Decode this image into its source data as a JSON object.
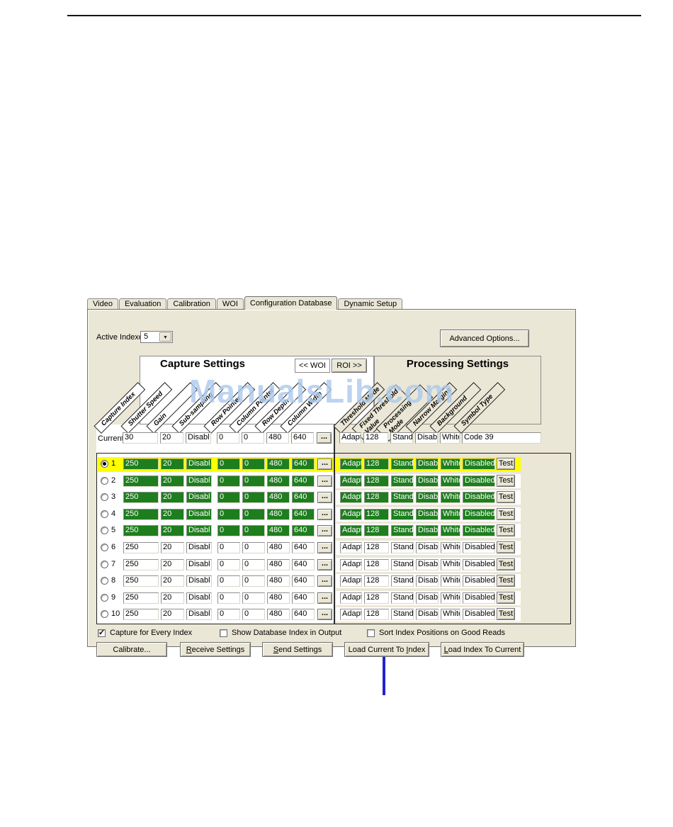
{
  "tabs": [
    {
      "label": "Video",
      "active": false
    },
    {
      "label": "Evaluation",
      "active": false
    },
    {
      "label": "Calibration",
      "active": false
    },
    {
      "label": "WOI",
      "active": false
    },
    {
      "label": "Configuration Database",
      "active": true
    },
    {
      "label": "Dynamic Setup",
      "active": false
    }
  ],
  "active_indexes": {
    "label": "Active Indexes",
    "value": "5"
  },
  "advanced_options_label": "Advanced Options...",
  "capture_settings": {
    "title": "Capture Settings",
    "woi_button": "<< WOI",
    "roi_button": "ROI >>",
    "columns": [
      "Capture Index",
      "Shutter Speed",
      "Gain",
      "Sub-sampling",
      "Row Pointer",
      "Column Pointer",
      "Row Depth",
      "Column Width"
    ]
  },
  "processing_settings": {
    "title": "Processing Settings",
    "columns": [
      "Threshold Mode",
      "Fixed Threshold\nValue",
      "Processing Mode",
      "Narrow Margins",
      "Background",
      "Symbol Type"
    ]
  },
  "current_row": {
    "label": "Current",
    "capture": [
      "30",
      "20",
      "Disabl",
      "0",
      "0",
      "480",
      "640"
    ],
    "more_button": "...",
    "processing": [
      "Adapti",
      "128",
      "Stand",
      "Disabl",
      "White"
    ],
    "symbol_type": "Code 39"
  },
  "rows": [
    {
      "index": "1",
      "selected": true,
      "active": true,
      "capture": [
        "250",
        "20",
        "Disabl",
        "0",
        "0",
        "480",
        "640"
      ],
      "more_button": "...",
      "processing": [
        "Adapti",
        "128",
        "Stand",
        "Disabl",
        "White",
        "Disabled"
      ],
      "test_label": "Test"
    },
    {
      "index": "2",
      "selected": false,
      "active": true,
      "capture": [
        "250",
        "20",
        "Disabl",
        "0",
        "0",
        "480",
        "640"
      ],
      "more_button": "...",
      "processing": [
        "Adapti",
        "128",
        "Stand",
        "Disabl",
        "White",
        "Disabled"
      ],
      "test_label": "Test"
    },
    {
      "index": "3",
      "selected": false,
      "active": true,
      "capture": [
        "250",
        "20",
        "Disabl",
        "0",
        "0",
        "480",
        "640"
      ],
      "more_button": "...",
      "processing": [
        "Adapti",
        "128",
        "Stand",
        "Disabl",
        "White",
        "Disabled"
      ],
      "test_label": "Test"
    },
    {
      "index": "4",
      "selected": false,
      "active": true,
      "capture": [
        "250",
        "20",
        "Disabl",
        "0",
        "0",
        "480",
        "640"
      ],
      "more_button": "...",
      "processing": [
        "Adapti",
        "128",
        "Stand",
        "Disabl",
        "White",
        "Disabled"
      ],
      "test_label": "Test"
    },
    {
      "index": "5",
      "selected": false,
      "active": true,
      "capture": [
        "250",
        "20",
        "Disabl",
        "0",
        "0",
        "480",
        "640"
      ],
      "more_button": "...",
      "processing": [
        "Adapti",
        "128",
        "Stand",
        "Disabl",
        "White",
        "Disabled"
      ],
      "test_label": "Test"
    },
    {
      "index": "6",
      "selected": false,
      "active": false,
      "capture": [
        "250",
        "20",
        "Disabl",
        "0",
        "0",
        "480",
        "640"
      ],
      "more_button": "...",
      "processing": [
        "Adapti",
        "128",
        "Stand",
        "Disabl",
        "White",
        "Disabled"
      ],
      "test_label": "Test"
    },
    {
      "index": "7",
      "selected": false,
      "active": false,
      "capture": [
        "250",
        "20",
        "Disabl",
        "0",
        "0",
        "480",
        "640"
      ],
      "more_button": "...",
      "processing": [
        "Adapti",
        "128",
        "Stand",
        "Disabl",
        "White",
        "Disabled"
      ],
      "test_label": "Test"
    },
    {
      "index": "8",
      "selected": false,
      "active": false,
      "capture": [
        "250",
        "20",
        "Disabl",
        "0",
        "0",
        "480",
        "640"
      ],
      "more_button": "...",
      "processing": [
        "Adapti",
        "128",
        "Stand",
        "Disabl",
        "White",
        "Disabled"
      ],
      "test_label": "Test"
    },
    {
      "index": "9",
      "selected": false,
      "active": false,
      "capture": [
        "250",
        "20",
        "Disabl",
        "0",
        "0",
        "480",
        "640"
      ],
      "more_button": "...",
      "processing": [
        "Adapti",
        "128",
        "Stand",
        "Disabl",
        "White",
        "Disabled"
      ],
      "test_label": "Test"
    },
    {
      "index": "10",
      "selected": false,
      "active": false,
      "capture": [
        "250",
        "20",
        "Disabl",
        "0",
        "0",
        "480",
        "640"
      ],
      "more_button": "...",
      "processing": [
        "Adapti",
        "128",
        "Stand",
        "Disabl",
        "White",
        "Disabled"
      ],
      "test_label": "Test"
    }
  ],
  "footer": {
    "checkboxes": [
      {
        "label": "Capture for Every Index",
        "checked": true
      },
      {
        "label": "Show Database Index in Output",
        "checked": false
      },
      {
        "label": "Sort Index Positions on Good Reads",
        "checked": false
      }
    ],
    "buttons": [
      {
        "label": "Calibrate...",
        "underline": -1
      },
      {
        "label": "Receive Settings",
        "underline": 0
      },
      {
        "label": "Send Settings",
        "underline": 0
      },
      {
        "label": "Load Current To Index",
        "underline": 16
      },
      {
        "label": "Load Index To Current",
        "underline": 0
      }
    ]
  },
  "watermark": "ManualsLib.com",
  "annotation_arrow": {
    "shape": "up-arrow",
    "points_to": "Load Current To Index",
    "color": "#2222cf"
  },
  "colors": {
    "active_field_green": "#1e7e1e",
    "highlight_yellow": "#ffff00",
    "dialog_beige": "#ebe7d6",
    "watermark_blue": "#aecaee",
    "arrow_blue": "#2222cf"
  }
}
